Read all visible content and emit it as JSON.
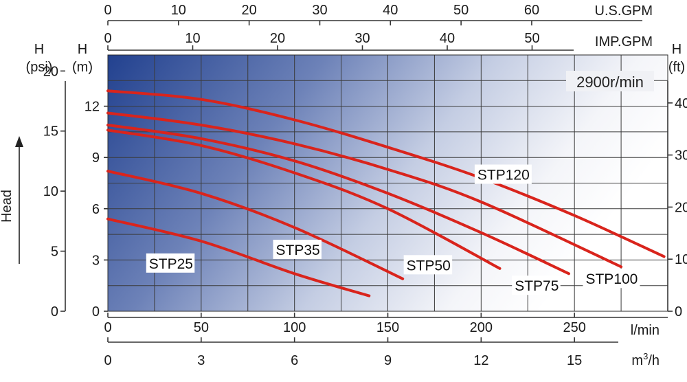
{
  "chart_data": {
    "type": "line",
    "speed_label": "2900r/min",
    "units": {
      "us_gpm": "U.S.GPM",
      "imp_gpm": "IMP.GPM",
      "lmin": "l/min",
      "m3h": "m3/h",
      "m3h_base": "m",
      "m3h_sup": "3",
      "m3h_tail": "/h",
      "psi_h": "H",
      "psi": "(psi)",
      "m_h": "H",
      "m": "(m)",
      "ft_h": "H",
      "ft": "(ft)",
      "head": "Head"
    },
    "xaxis_lmin": {
      "range": [
        0,
        300
      ],
      "ticks": [
        "0",
        "50",
        "100",
        "150",
        "200",
        "250"
      ],
      "tick_values": [
        0,
        50,
        100,
        150,
        200,
        250
      ]
    },
    "xaxis_m3h": {
      "ticks": [
        "0",
        "3",
        "6",
        "9",
        "12",
        "15"
      ],
      "tick_values": [
        0,
        3,
        6,
        9,
        12,
        15
      ]
    },
    "xaxis_us_gpm": {
      "ticks": [
        "0",
        "10",
        "20",
        "30",
        "40",
        "50",
        "60"
      ],
      "tick_values": [
        0,
        10,
        20,
        30,
        40,
        50,
        60
      ]
    },
    "xaxis_imp_gpm": {
      "ticks": [
        "0",
        "10",
        "20",
        "30",
        "40",
        "50"
      ],
      "tick_values": [
        0,
        10,
        20,
        30,
        40,
        50
      ]
    },
    "yaxis_m": {
      "range": [
        0,
        15
      ],
      "ticks": [
        "0",
        "3",
        "6",
        "9",
        "12"
      ],
      "tick_values": [
        0,
        3,
        6,
        9,
        12
      ]
    },
    "yaxis_psi": {
      "ticks": [
        "0",
        "5",
        "10",
        "15",
        "20"
      ],
      "tick_values": [
        0,
        5,
        10,
        15,
        20
      ]
    },
    "yaxis_ft": {
      "ticks": [
        "0",
        "10",
        "20",
        "30",
        "40"
      ],
      "tick_values": [
        0,
        10,
        20,
        30,
        40
      ]
    },
    "series": [
      {
        "name": "STP25",
        "x": [
          0,
          50,
          100,
          140
        ],
        "y": [
          5.4,
          4.1,
          2.2,
          0.9
        ]
      },
      {
        "name": "STP35",
        "x": [
          0,
          50,
          100,
          158
        ],
        "y": [
          8.2,
          6.9,
          4.9,
          1.9
        ]
      },
      {
        "name": "STP50",
        "x": [
          0,
          50,
          100,
          150,
          210
        ],
        "y": [
          10.6,
          9.7,
          8.1,
          6.0,
          2.5
        ]
      },
      {
        "name": "STP75",
        "x": [
          0,
          50,
          100,
          150,
          200,
          247
        ],
        "y": [
          10.9,
          10.1,
          8.8,
          6.9,
          4.6,
          2.2
        ]
      },
      {
        "name": "STP100",
        "x": [
          0,
          50,
          100,
          150,
          200,
          275
        ],
        "y": [
          11.6,
          10.9,
          9.8,
          8.3,
          6.4,
          2.6
        ]
      },
      {
        "name": "STP120",
        "x": [
          0,
          50,
          100,
          150,
          200,
          250,
          298
        ],
        "y": [
          12.9,
          12.4,
          11.2,
          9.6,
          7.8,
          5.6,
          3.2
        ]
      }
    ]
  }
}
